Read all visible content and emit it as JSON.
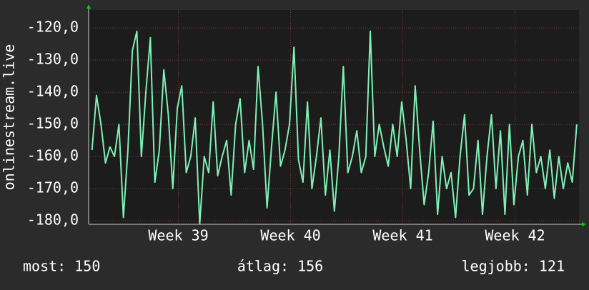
{
  "chart_data": {
    "type": "line",
    "ylabel": "onlinestream.live",
    "annotations": [
      "most: 150",
      "átlag: 156",
      "legjobb: 121"
    ],
    "xlim": [
      38.2,
      42.57
    ],
    "ylim": [
      -181.1,
      -114.4
    ],
    "xticks": [
      {
        "value": 39,
        "label": "Week 39"
      },
      {
        "value": 40,
        "label": "Week 40"
      },
      {
        "value": 41,
        "label": "Week 41"
      },
      {
        "value": 42,
        "label": "Week 42"
      }
    ],
    "yticks": [
      {
        "value": -120,
        "label": "-120,0"
      },
      {
        "value": -130,
        "label": "-130,0"
      },
      {
        "value": -140,
        "label": "-140,0"
      },
      {
        "value": -150,
        "label": "-150,0"
      },
      {
        "value": -160,
        "label": "-160,0"
      },
      {
        "value": -170,
        "label": "-170,0"
      },
      {
        "value": -180,
        "label": "-180,0"
      }
    ],
    "grid": true,
    "x": [
      38.23,
      38.27,
      38.31,
      38.35,
      38.39,
      38.43,
      38.47,
      38.51,
      38.55,
      38.59,
      38.63,
      38.67,
      38.71,
      38.75,
      38.79,
      38.83,
      38.87,
      38.91,
      38.95,
      38.99,
      39.03,
      39.07,
      39.11,
      39.15,
      39.19,
      39.23,
      39.27,
      39.31,
      39.35,
      39.39,
      39.43,
      39.47,
      39.51,
      39.55,
      39.59,
      39.63,
      39.67,
      39.71,
      39.75,
      39.79,
      39.83,
      39.87,
      39.91,
      39.95,
      39.99,
      40.03,
      40.07,
      40.11,
      40.15,
      40.19,
      40.23,
      40.27,
      40.31,
      40.35,
      40.39,
      40.43,
      40.47,
      40.51,
      40.55,
      40.59,
      40.63,
      40.67,
      40.71,
      40.75,
      40.79,
      40.83,
      40.87,
      40.91,
      40.95,
      40.99,
      41.03,
      41.07,
      41.11,
      41.15,
      41.19,
      41.23,
      41.27,
      41.31,
      41.35,
      41.39,
      41.43,
      41.47,
      41.51,
      41.55,
      41.59,
      41.63,
      41.67,
      41.71,
      41.75,
      41.79,
      41.83,
      41.87,
      41.91,
      41.95,
      41.99,
      42.03,
      42.07,
      42.11,
      42.15,
      42.19,
      42.23,
      42.27,
      42.31,
      42.35,
      42.39,
      42.43,
      42.47,
      42.51,
      42.55
    ],
    "series": [
      {
        "name": null,
        "color": "#7ff0b4",
        "values": [
          -158,
          -141,
          -150,
          -162,
          -157,
          -160,
          -150,
          -179,
          -158,
          -127,
          -121,
          -160,
          -140,
          -123,
          -168,
          -158,
          -133,
          -147,
          -170,
          -145,
          -138,
          -165,
          -160,
          -148,
          -181,
          -160,
          -165,
          -143,
          -166,
          -160,
          -155,
          -172,
          -150,
          -142,
          -165,
          -155,
          -164,
          -132,
          -150,
          -176,
          -157,
          -140,
          -163,
          -158,
          -150,
          -126,
          -161,
          -168,
          -143,
          -170,
          -160,
          -148,
          -172,
          -158,
          -177,
          -160,
          -132,
          -165,
          -160,
          -152,
          -165,
          -160,
          -121,
          -160,
          -150,
          -157,
          -163,
          -150,
          -160,
          -143,
          -155,
          -170,
          -138,
          -158,
          -175,
          -165,
          -149,
          -178,
          -160,
          -170,
          -165,
          -179,
          -160,
          -147,
          -172,
          -170,
          -155,
          -178,
          -160,
          -147,
          -170,
          -152,
          -178,
          -150,
          -175,
          -160,
          -155,
          -172,
          -150,
          -165,
          -160,
          -170,
          -158,
          -173,
          -160,
          -170,
          -162,
          -168,
          -150
        ]
      }
    ]
  }
}
